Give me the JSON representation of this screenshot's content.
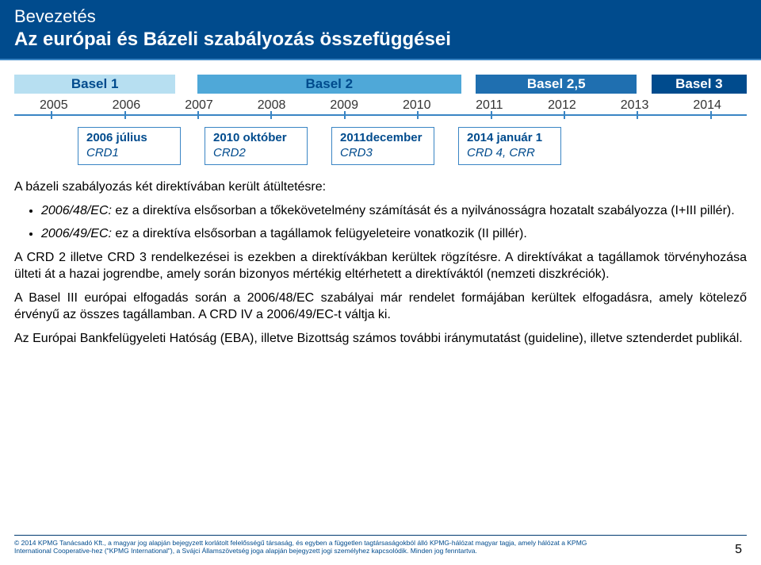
{
  "header": {
    "line1": "Bevezetés",
    "line2": "Az európai és Bázeli szabályozás összefüggései"
  },
  "timeline": {
    "basel": [
      {
        "label": "Basel 1",
        "width_pct": 22,
        "bg": "#b7dff1",
        "color": "#004b8d"
      },
      {
        "label": "",
        "width_pct": 3,
        "bg": "#ffffff",
        "color": "#004b8d"
      },
      {
        "label": "Basel 2",
        "width_pct": 36,
        "bg": "#4fa8d8",
        "color": "#004b8d"
      },
      {
        "label": "",
        "width_pct": 2,
        "bg": "#ffffff",
        "color": "#004b8d"
      },
      {
        "label": "Basel 2,5",
        "width_pct": 22,
        "bg": "#1f6fb0",
        "color": "#ffffff"
      },
      {
        "label": "",
        "width_pct": 2,
        "bg": "#ffffff",
        "color": "#004b8d"
      },
      {
        "label": "Basel 3",
        "width_pct": 13,
        "bg": "#004b8d",
        "color": "#ffffff"
      }
    ],
    "years": [
      "2005",
      "2006",
      "2007",
      "2008",
      "2009",
      "2010",
      "2011",
      "2012",
      "2013",
      "2014"
    ],
    "events": [
      {
        "line1": "2006 július",
        "line2": "CRD1"
      },
      {
        "line1": "2010 október",
        "line2": "CRD2"
      },
      {
        "line1": "2011december",
        "line2": "CRD3"
      },
      {
        "line1": "2014 január 1",
        "line2": "CRD 4, CRR"
      }
    ]
  },
  "paragraphs": {
    "intro": "A bázeli szabályozás két direktívában került átültetésre:",
    "li1a": "2006/48/EC:",
    "li1b": " ez a direktíva elsősorban a tőkekövetelmény számítását és a nyilvánosságra hozatalt szabályozza (I+III pillér).",
    "li2a": "2006/49/EC:",
    "li2b": " ez a direktíva elsősorban a tagállamok felügyeleteire vonatkozik (II pillér).",
    "p2": "A CRD 2 illetve CRD 3 rendelkezései is ezekben a direktívákban kerültek rögzítésre. A direktívákat a tagállamok törvényhozása ülteti át a hazai jogrendbe, amely során bizonyos mértékig eltérhetett a direktíváktól (nemzeti diszkréciók).",
    "p3": "A Basel III  európai elfogadás során a 2006/48/EC szabályai már rendelet formájában kerültek elfogadásra, amely kötelező érvényű az összes tagállamban. A CRD IV a 2006/49/EC-t váltja ki.",
    "p4": "Az Európai Bankfelügyeleti Hatóság (EBA), illetve Bizottság számos további  iránymutatást (guideline), illetve sztenderdet publikál."
  },
  "footer": {
    "text": "© 2014 KPMG Tanácsadó Kft., a magyar jog alapján bejegyzett korlátolt felelősségű társaság, és egyben a független tagtársaságokból álló KPMG-hálózat magyar tagja, amely hálózat a KPMG International Cooperative-hez (\"KPMG International\"), a Svájci Államszövetség joga alapján bejegyzett jogi személyhez kapcsolódik. Minden jog fenntartva.",
    "page": "5"
  },
  "colors": {
    "brand_dark": "#004b8d",
    "brand_mid": "#3a85c4"
  }
}
